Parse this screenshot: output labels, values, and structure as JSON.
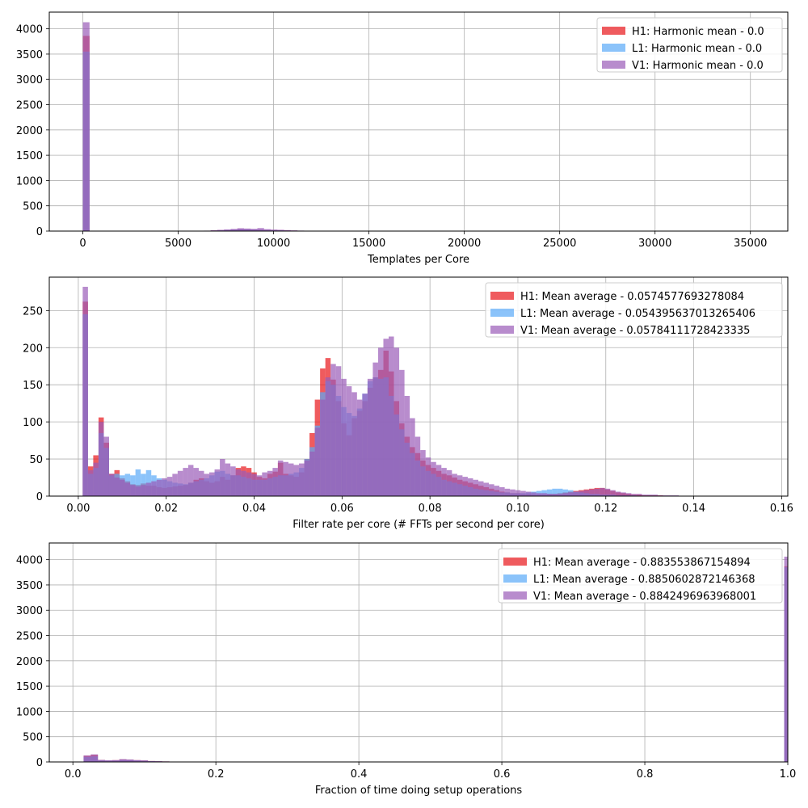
{
  "chart_data": [
    {
      "type": "bar",
      "xlabel": "Templates per Core",
      "ylabel": "",
      "xlim": [
        -1760,
        36960
      ],
      "ylim": [
        0,
        4330
      ],
      "xticks": [
        0,
        5000,
        10000,
        15000,
        20000,
        25000,
        30000,
        35000
      ],
      "yticks": [
        0,
        500,
        1000,
        1500,
        2000,
        2500,
        3000,
        3500,
        4000
      ],
      "grid": true,
      "legend_position": "top-right",
      "bin_width": 350,
      "series": [
        {
          "name": "H1: Harmonic mean  - 0.0",
          "color": "#e8161a",
          "bins": [
            [
              0,
              3860
            ],
            [
              6000,
              4
            ],
            [
              6350,
              8
            ],
            [
              6700,
              14
            ],
            [
              7050,
              20
            ],
            [
              7400,
              26
            ],
            [
              7750,
              34
            ],
            [
              8100,
              44
            ],
            [
              8450,
              40
            ],
            [
              8800,
              34
            ],
            [
              9150,
              30
            ],
            [
              9500,
              26
            ],
            [
              9850,
              22
            ],
            [
              10200,
              18
            ],
            [
              10550,
              14
            ],
            [
              10900,
              10
            ],
            [
              11250,
              8
            ],
            [
              11600,
              6
            ],
            [
              11950,
              4
            ],
            [
              12300,
              3
            ],
            [
              12650,
              2
            ],
            [
              13000,
              1
            ]
          ]
        },
        {
          "name": "L1: Harmonic mean  - 0.0",
          "color": "#5aa9f8",
          "bins": [
            [
              0,
              3550
            ],
            [
              6000,
              3
            ],
            [
              6350,
              7
            ],
            [
              6700,
              12
            ],
            [
              7050,
              18
            ],
            [
              7400,
              24
            ],
            [
              7750,
              32
            ],
            [
              8100,
              40
            ],
            [
              8450,
              38
            ],
            [
              8800,
              32
            ],
            [
              9150,
              28
            ],
            [
              9500,
              24
            ],
            [
              9850,
              20
            ],
            [
              10200,
              16
            ],
            [
              10550,
              12
            ],
            [
              10900,
              9
            ],
            [
              11250,
              7
            ],
            [
              11600,
              5
            ],
            [
              11950,
              3
            ],
            [
              12300,
              2
            ],
            [
              12650,
              1
            ]
          ]
        },
        {
          "name": "V1: Harmonic mean  - 0.0",
          "color": "#9a5bb8",
          "bins": [
            [
              0,
              4130
            ],
            [
              6000,
              5
            ],
            [
              6350,
              9
            ],
            [
              6700,
              16
            ],
            [
              7050,
              24
            ],
            [
              7400,
              32
            ],
            [
              7750,
              42
            ],
            [
              8100,
              56
            ],
            [
              8450,
              50
            ],
            [
              8800,
              44
            ],
            [
              9150,
              60
            ],
            [
              9500,
              38
            ],
            [
              9850,
              30
            ],
            [
              10200,
              26
            ],
            [
              10550,
              20
            ],
            [
              10900,
              14
            ],
            [
              11250,
              10
            ],
            [
              11600,
              8
            ],
            [
              11950,
              6
            ],
            [
              12300,
              4
            ],
            [
              12650,
              3
            ],
            [
              13000,
              2
            ]
          ]
        }
      ]
    },
    {
      "type": "bar",
      "xlabel": "Filter rate per core (# FFTs per second per core)",
      "ylabel": "",
      "xlim": [
        -0.0066,
        0.1614
      ],
      "ylim": [
        0,
        295
      ],
      "xticks": [
        0.0,
        0.02,
        0.04,
        0.06,
        0.08,
        0.1,
        0.12,
        0.14,
        0.16
      ],
      "xtick_labels": [
        "0.00",
        "0.02",
        "0.04",
        "0.06",
        "0.08",
        "0.10",
        "0.12",
        "0.14",
        "0.16"
      ],
      "yticks": [
        0,
        50,
        100,
        150,
        200,
        250
      ],
      "grid": true,
      "legend_position": "top-right",
      "bin_start": 0.001,
      "bin_width": 0.0012,
      "series": [
        {
          "name": "H1: Mean average - 0.0574577693278084",
          "color": "#e8161a",
          "values": [
            262,
            40,
            55,
            106,
            72,
            30,
            35,
            24,
            20,
            16,
            15,
            17,
            14,
            14,
            12,
            11,
            12,
            13,
            14,
            15,
            18,
            22,
            24,
            20,
            18,
            20,
            26,
            22,
            28,
            38,
            40,
            38,
            32,
            26,
            24,
            30,
            33,
            45,
            30,
            28,
            26,
            32,
            50,
            85,
            130,
            172,
            186,
            157,
            128,
            98,
            82,
            105,
            115,
            128,
            146,
            160,
            170,
            196,
            168,
            128,
            98,
            80,
            66,
            58,
            48,
            42,
            38,
            34,
            30,
            28,
            25,
            22,
            20,
            18,
            16,
            14,
            12,
            10,
            8,
            6,
            5,
            4,
            4,
            3,
            3,
            2,
            2,
            2,
            3,
            3,
            4,
            5,
            6,
            7,
            8,
            9,
            10,
            11,
            11,
            9,
            7,
            5,
            4,
            3,
            2,
            2,
            1,
            1,
            1,
            1,
            0,
            0,
            0,
            0,
            0,
            0,
            0,
            0,
            0,
            0,
            0,
            0,
            0,
            0,
            0,
            0,
            0,
            0
          ]
        },
        {
          "name": "L1: Mean average - 0.054395637013265406",
          "color": "#5aa9f8",
          "values": [
            245,
            30,
            38,
            85,
            65,
            28,
            30,
            28,
            30,
            28,
            36,
            30,
            35,
            28,
            24,
            22,
            20,
            18,
            17,
            16,
            18,
            20,
            22,
            24,
            28,
            33,
            34,
            30,
            28,
            28,
            26,
            24,
            22,
            22,
            22,
            24,
            26,
            28,
            28,
            30,
            32,
            38,
            50,
            66,
            95,
            140,
            155,
            150,
            135,
            120,
            112,
            108,
            118,
            138,
            155,
            160,
            158,
            160,
            135,
            110,
            90,
            72,
            58,
            48,
            40,
            34,
            30,
            26,
            22,
            20,
            18,
            16,
            14,
            12,
            10,
            9,
            8,
            7,
            6,
            5,
            5,
            4,
            4,
            4,
            5,
            6,
            7,
            8,
            9,
            10,
            10,
            9,
            8,
            6,
            5,
            4,
            3,
            3,
            2,
            2,
            2,
            1,
            1,
            1,
            1,
            0,
            0,
            0,
            0,
            0,
            0,
            0,
            0,
            0,
            0,
            0,
            0,
            0,
            0,
            0,
            0,
            0,
            0,
            0,
            0,
            0,
            0,
            0
          ]
        },
        {
          "name": "V1: Mean average - 0.05784111728423335",
          "color": "#9a5bb8",
          "values": [
            282,
            35,
            45,
            100,
            80,
            30,
            25,
            22,
            18,
            15,
            13,
            15,
            18,
            20,
            22,
            24,
            26,
            30,
            34,
            38,
            42,
            38,
            34,
            30,
            32,
            36,
            50,
            44,
            40,
            36,
            34,
            32,
            30,
            28,
            32,
            34,
            38,
            48,
            46,
            44,
            42,
            44,
            48,
            60,
            92,
            130,
            160,
            178,
            175,
            158,
            148,
            140,
            130,
            138,
            158,
            180,
            200,
            212,
            215,
            200,
            170,
            135,
            105,
            80,
            62,
            52,
            46,
            42,
            38,
            35,
            30,
            28,
            26,
            24,
            22,
            20,
            18,
            16,
            14,
            12,
            10,
            9,
            8,
            7,
            6,
            5,
            4,
            4,
            3,
            3,
            3,
            4,
            5,
            6,
            7,
            8,
            9,
            10,
            11,
            10,
            8,
            6,
            5,
            4,
            3,
            3,
            2,
            2,
            2,
            1,
            1,
            1,
            1,
            0,
            0,
            0,
            0,
            0,
            0,
            0,
            0,
            0,
            0,
            0,
            0,
            0,
            0,
            0
          ]
        }
      ]
    },
    {
      "type": "bar",
      "xlabel": "Fraction of time doing setup operations",
      "ylabel": "",
      "xlim": [
        -0.033,
        1.0
      ],
      "ylim": [
        0,
        4330
      ],
      "xticks": [
        0.0,
        0.2,
        0.4,
        0.6,
        0.8,
        1.0
      ],
      "xtick_labels": [
        "0.0",
        "0.2",
        "0.4",
        "0.6",
        "0.8",
        "1.0"
      ],
      "yticks": [
        0,
        500,
        1000,
        1500,
        2000,
        2500,
        3000,
        3500,
        4000
      ],
      "grid": true,
      "legend_position": "top-right",
      "bin_width": 0.01,
      "series": [
        {
          "name": "H1: Mean average - 0.883553867154894",
          "color": "#e8161a",
          "bins": [
            [
              0.015,
              120
            ],
            [
              0.025,
              140
            ],
            [
              0.035,
              40
            ],
            [
              0.045,
              30
            ],
            [
              0.055,
              35
            ],
            [
              0.065,
              50
            ],
            [
              0.075,
              45
            ],
            [
              0.085,
              35
            ],
            [
              0.095,
              30
            ],
            [
              0.105,
              18
            ],
            [
              0.115,
              14
            ],
            [
              0.125,
              10
            ],
            [
              0.135,
              8
            ],
            [
              0.145,
              6
            ],
            [
              0.155,
              5
            ],
            [
              0.165,
              4
            ],
            [
              0.175,
              3
            ],
            [
              0.185,
              2
            ],
            [
              0.995,
              3870
            ]
          ]
        },
        {
          "name": "L1: Mean average - 0.8850602872146368",
          "color": "#5aa9f8",
          "bins": [
            [
              0.015,
              100
            ],
            [
              0.025,
              110
            ],
            [
              0.035,
              35
            ],
            [
              0.045,
              28
            ],
            [
              0.055,
              30
            ],
            [
              0.065,
              42
            ],
            [
              0.075,
              40
            ],
            [
              0.085,
              32
            ],
            [
              0.095,
              26
            ],
            [
              0.105,
              16
            ],
            [
              0.115,
              12
            ],
            [
              0.125,
              9
            ],
            [
              0.135,
              7
            ],
            [
              0.145,
              6
            ],
            [
              0.155,
              5
            ],
            [
              0.165,
              4
            ],
            [
              0.175,
              3
            ],
            [
              0.185,
              2
            ],
            [
              0.205,
              8
            ],
            [
              0.215,
              6
            ],
            [
              0.995,
              3850
            ]
          ]
        },
        {
          "name": "V1: Mean average - 0.8842496963968001",
          "color": "#9a5bb8",
          "bins": [
            [
              0.015,
              130
            ],
            [
              0.025,
              150
            ],
            [
              0.035,
              38
            ],
            [
              0.045,
              32
            ],
            [
              0.055,
              36
            ],
            [
              0.065,
              55
            ],
            [
              0.075,
              48
            ],
            [
              0.085,
              36
            ],
            [
              0.095,
              30
            ],
            [
              0.105,
              18
            ],
            [
              0.115,
              14
            ],
            [
              0.125,
              10
            ],
            [
              0.135,
              8
            ],
            [
              0.145,
              6
            ],
            [
              0.155,
              5
            ],
            [
              0.165,
              4
            ],
            [
              0.175,
              3
            ],
            [
              0.185,
              2
            ],
            [
              0.995,
              4060
            ]
          ]
        }
      ]
    }
  ]
}
